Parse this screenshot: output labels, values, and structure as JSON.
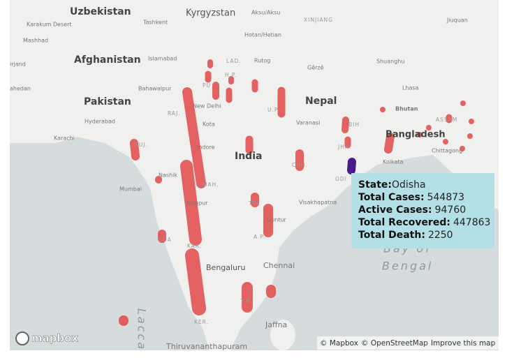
{
  "map": {
    "labels": [
      "Uzbekistan",
      "Kyrgyzstan",
      "Aksu/Aksu",
      "Karakum Desert",
      "Tashkent",
      "XINJIANG",
      "Jiuquan",
      "Mashhad",
      "Hotan/Hetian",
      "Afghanistan",
      "Islamabad",
      "LAD.",
      "Rutog",
      "Gêrzê",
      "Shuanghu",
      "irjand",
      "ahedan",
      "Bahawalpur",
      "Lhasa",
      "Pakistan",
      "New Delhi",
      "Nepal",
      "Bhutan",
      "Hyderabad",
      "Kota",
      "Varanasi",
      "Karachi",
      "Bangladesh",
      "GUJ.",
      "Indore",
      "India",
      "Chittagong",
      "Kolkata",
      "Nashik",
      "Mumbai",
      "MAH.",
      "CHH.",
      "JHA.",
      "BIH",
      "U.P.",
      "RAJ.",
      "ODI",
      "Solapur",
      "TEL",
      "Visakhapatna",
      "Guntur",
      "A.P.",
      "GOA",
      "KAR.",
      "Bengaluru",
      "Chennai",
      "T.N.",
      "KER.",
      "Jaffna",
      "Thiruvananthapuram",
      "Lacca",
      "Bay of",
      "Bengal",
      "ASSAM",
      "PU",
      "H.P."
    ]
  },
  "tooltip": {
    "fields": [
      {
        "label": "State:",
        "value": "Odisha"
      },
      {
        "label": "Total Cases:",
        "value": 544873
      },
      {
        "label": "Active Cases:",
        "value": 94760
      },
      {
        "label": "Total Recovered:",
        "value": 447863
      },
      {
        "label": "Total Death:",
        "value": 2250
      }
    ]
  },
  "logo": "mapbox",
  "attribution": [
    "© Mapbox",
    "© OpenStreetMap",
    "Improve this map"
  ]
}
